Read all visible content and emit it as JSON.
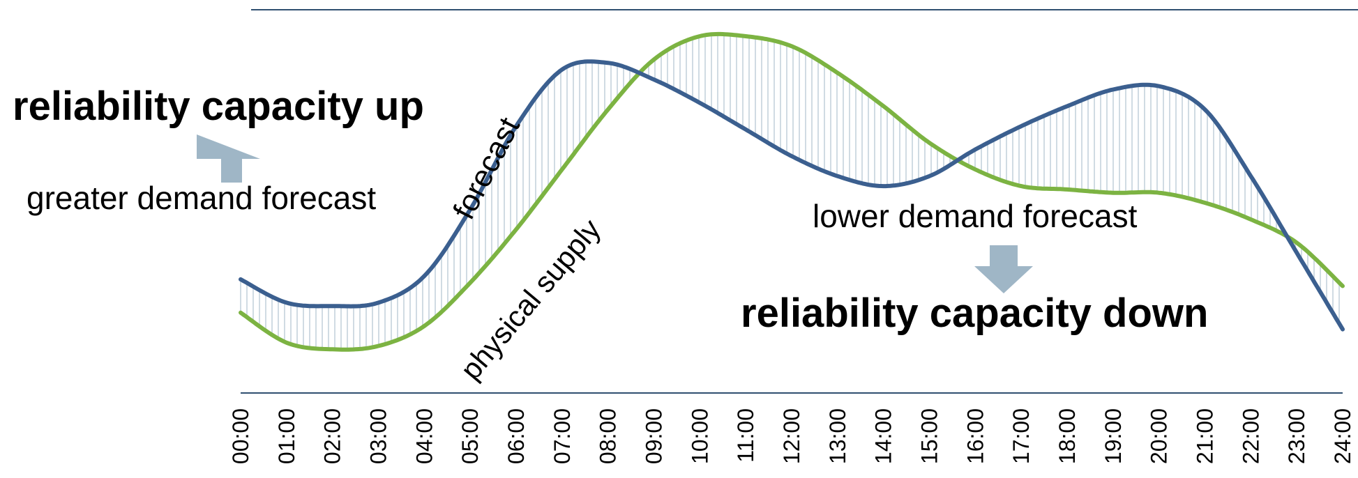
{
  "chart_data": {
    "type": "line",
    "title": "",
    "xlabel": "",
    "ylabel": "",
    "x_ticks": [
      "00:00",
      "01:00",
      "02:00",
      "03:00",
      "04:00",
      "05:00",
      "06:00",
      "07:00",
      "08:00",
      "09:00",
      "10:00",
      "11:00",
      "12:00",
      "13:00",
      "14:00",
      "15:00",
      "16:00",
      "17:00",
      "18:00",
      "19:00",
      "20:00",
      "21:00",
      "22:00",
      "23:00",
      "24:00"
    ],
    "y_range": [
      0,
      100
    ],
    "grid": false,
    "legend": "none",
    "series": [
      {
        "name": "forecast",
        "color": "#3b5f8f",
        "x": [
          0,
          1,
          2,
          3,
          4,
          5,
          6,
          7,
          8,
          9,
          10,
          11,
          12,
          13,
          14,
          15,
          16,
          17,
          18,
          19,
          20,
          21,
          22,
          23,
          24
        ],
        "y": [
          27,
          20,
          19,
          20,
          28,
          48,
          73,
          90,
          92,
          87,
          80,
          72,
          64,
          58,
          55,
          58,
          66,
          73,
          79,
          84,
          85,
          78,
          58,
          35,
          12
        ]
      },
      {
        "name": "physical supply",
        "color": "#7cb342",
        "x": [
          0,
          1,
          2,
          3,
          4,
          5,
          6,
          7,
          8,
          9,
          10,
          11,
          12,
          13,
          14,
          15,
          16,
          17,
          18,
          19,
          20,
          21,
          22,
          23,
          24
        ],
        "y": [
          17,
          8,
          6,
          7,
          13,
          26,
          42,
          60,
          78,
          93,
          100,
          100,
          97,
          89,
          79,
          68,
          60,
          55,
          54,
          53,
          53,
          50,
          45,
          38,
          25
        ]
      }
    ],
    "shading_between": [
      "forecast",
      "physical supply"
    ],
    "shading_color": "#c5d2dc"
  },
  "annotations": {
    "forecast_label": "forecast",
    "supply_label": "physical supply",
    "up_title": "reliability capacity up",
    "up_sub": "greater demand forecast",
    "down_title": "reliability capacity down",
    "down_sub": "lower demand forecast",
    "arrow_color": "#9fb6c6",
    "axis_color": "#2f4f70"
  }
}
